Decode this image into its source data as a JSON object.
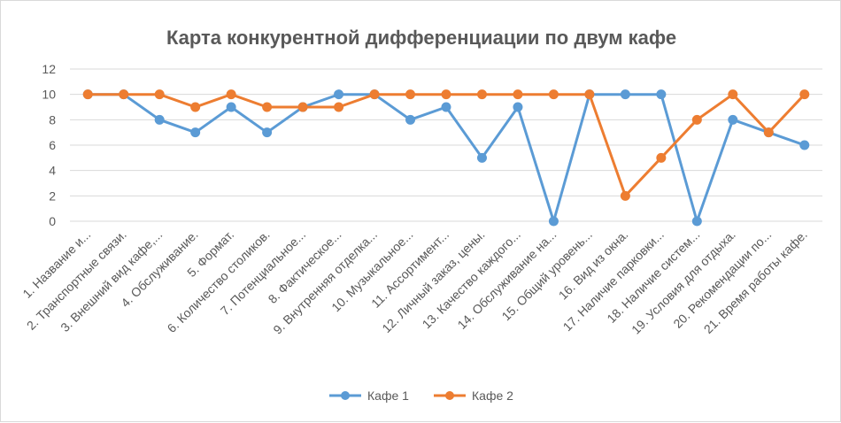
{
  "chart_data": {
    "type": "line",
    "title": "Карта конкурентной дифференциации по двум кафе",
    "xlabel": "",
    "ylabel": "",
    "ylim": [
      0,
      12
    ],
    "yticks": [
      0,
      2,
      4,
      6,
      8,
      10,
      12
    ],
    "grid": true,
    "legend_position": "bottom",
    "categories": [
      "1. Название и...",
      "2. Транспортные связи.",
      "3. Внешний вид кафе,...",
      "4. Обслуживание.",
      "5. Формат.",
      "6. Количество столиков.",
      "7. Потенциальное...",
      "8. Фактическое...",
      "9. Внутренняя отделка...",
      "10. Музыкальное...",
      "11. Ассортимент...",
      "12. Личный заказ, цены.",
      "13. Качество каждого...",
      "14. Обслуживание на...",
      "15. Общий уровень...",
      "16. Вид из окна.",
      "17. Наличие парковки...",
      "18. Наличие систем...",
      "19. Условия для отдыха.",
      "20. Рекомендации по...",
      "21. Время работы кафе."
    ],
    "series": [
      {
        "name": "Кафе 1",
        "color": "#5b9bd5",
        "values": [
          10,
          10,
          8,
          7,
          9,
          7,
          9,
          10,
          10,
          8,
          9,
          5,
          9,
          0,
          10,
          10,
          10,
          0,
          8,
          7,
          6
        ]
      },
      {
        "name": "Кафе 2",
        "color": "#ed7d31",
        "values": [
          10,
          10,
          10,
          9,
          10,
          9,
          9,
          9,
          10,
          10,
          10,
          10,
          10,
          10,
          10,
          2,
          5,
          8,
          10,
          7,
          10
        ]
      }
    ]
  }
}
